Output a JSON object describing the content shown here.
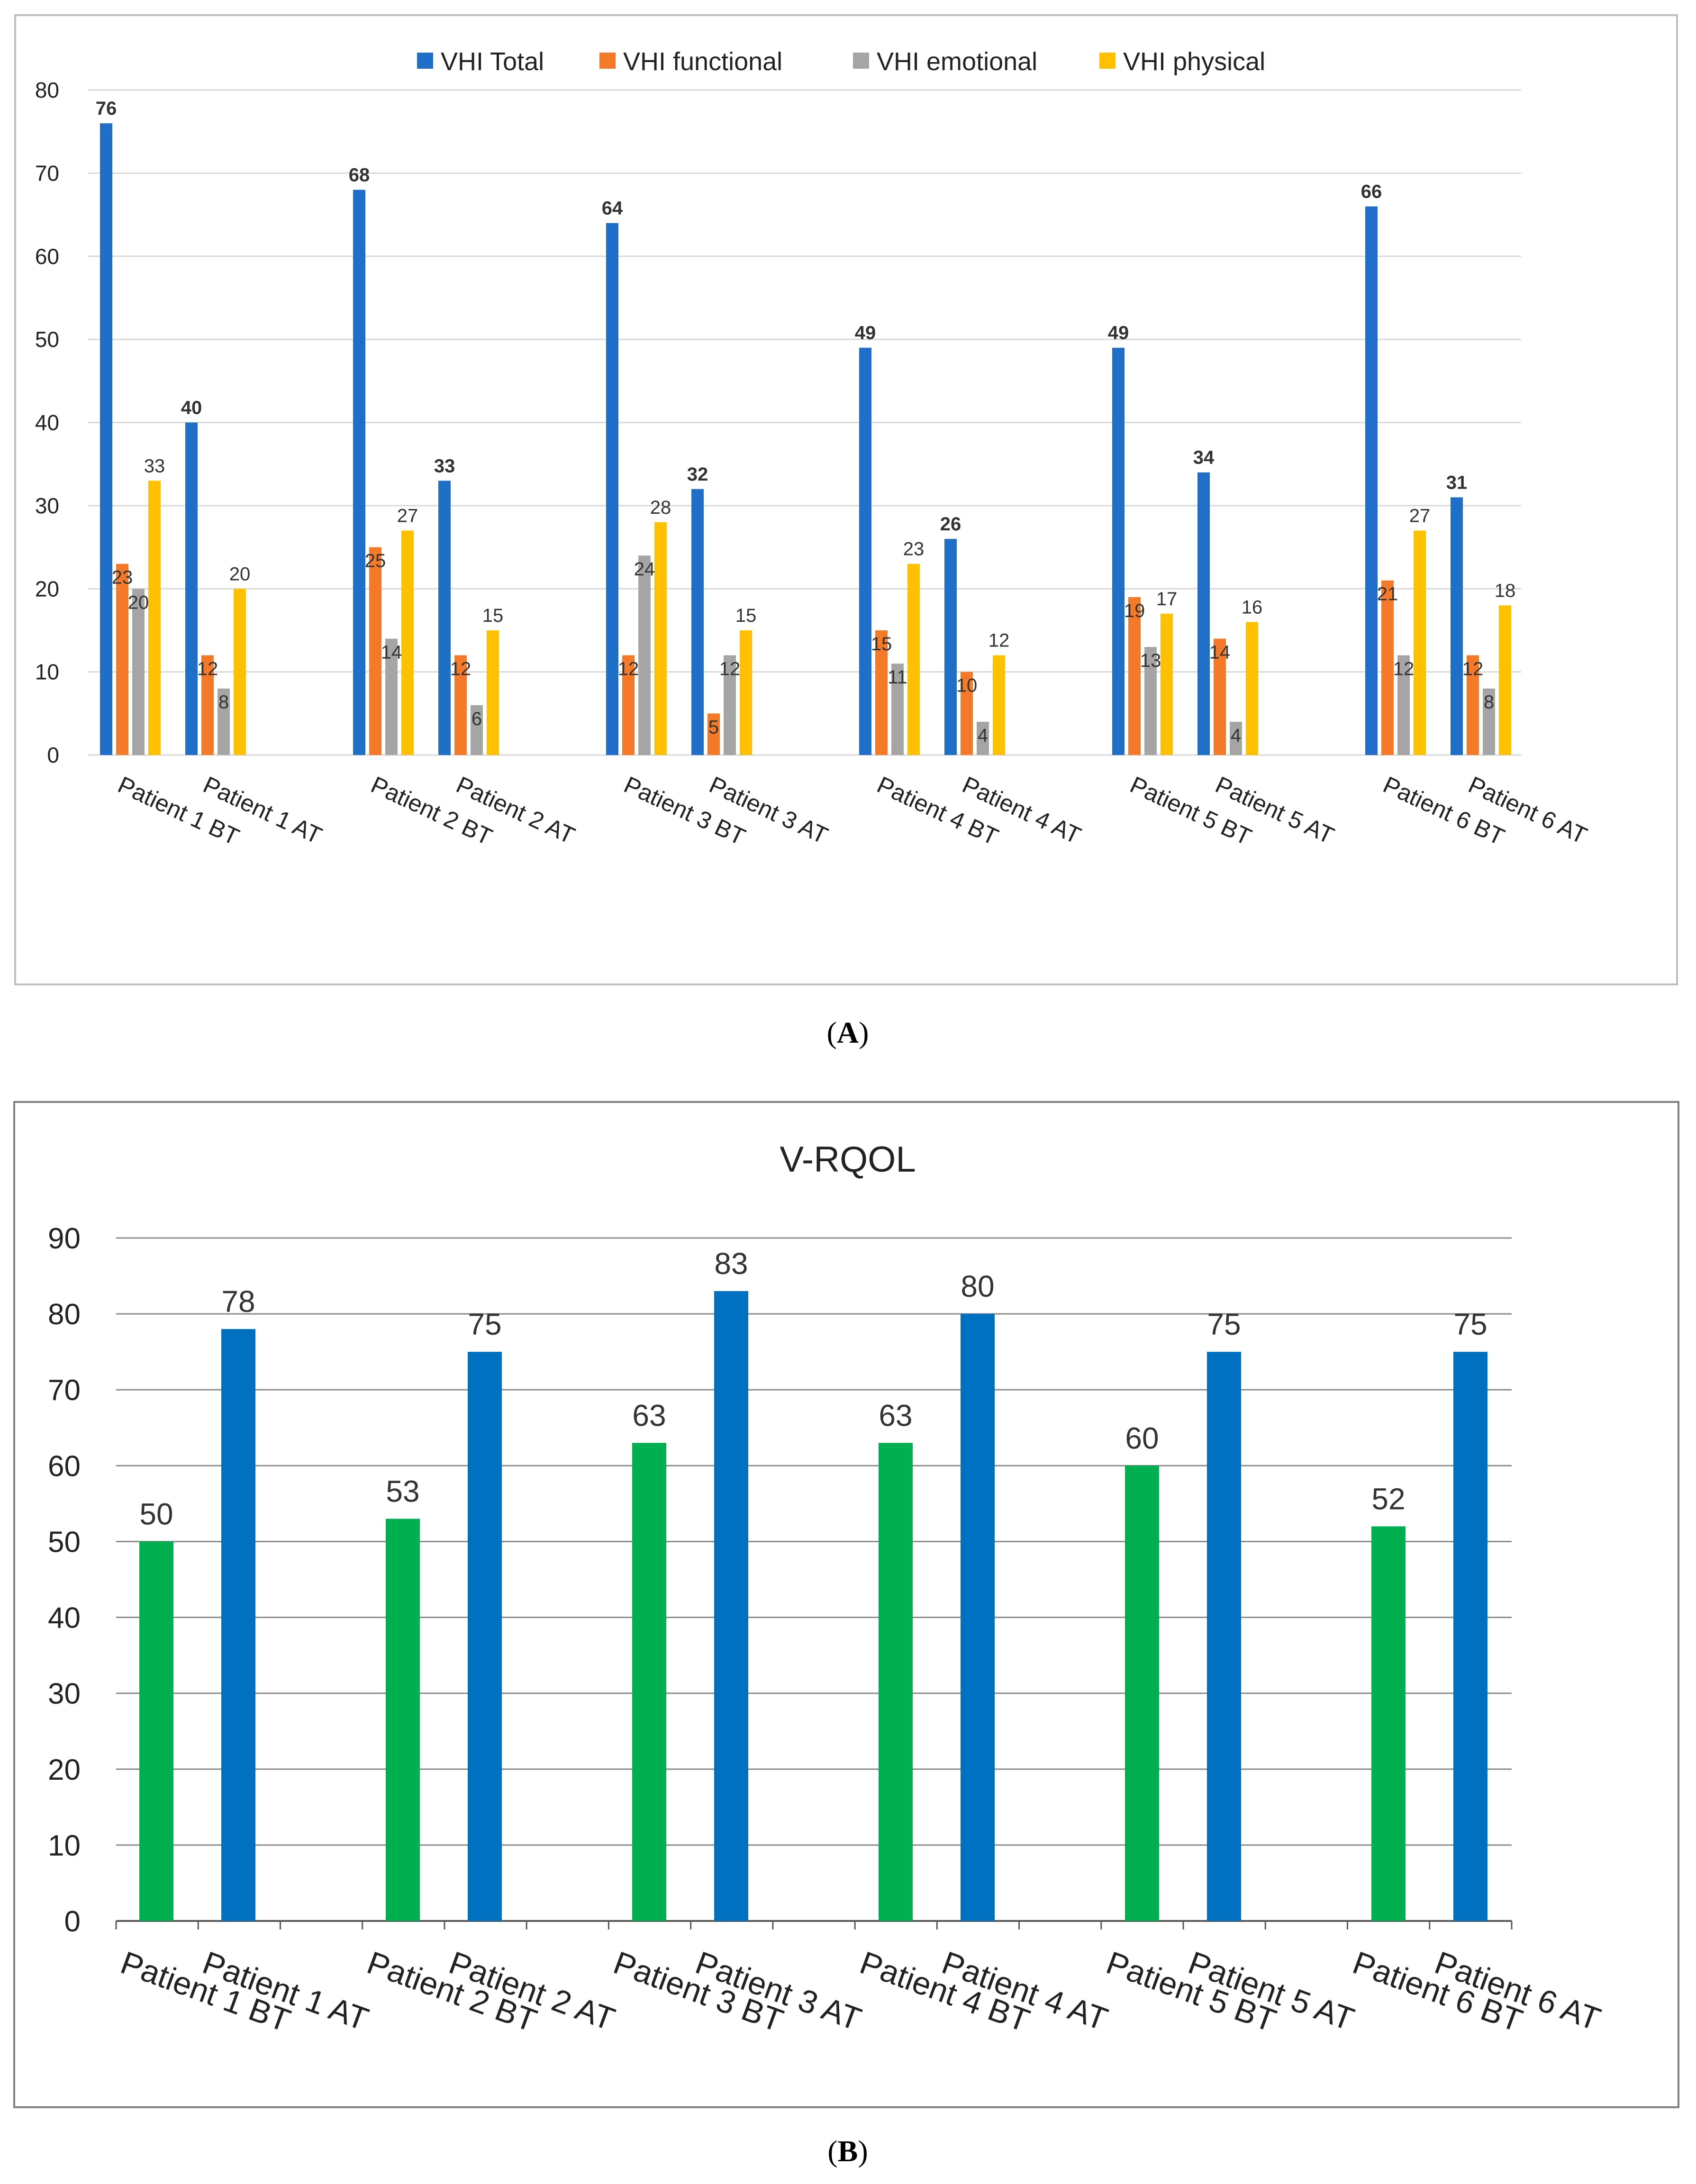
{
  "colors": {
    "vhi_total": "#1F6FC8",
    "vhi_functional": "#F47A2A",
    "vhi_emotional": "#A5A5A5",
    "vhi_physical": "#FFC000",
    "vrqol_bt": "#00B050",
    "vrqol_at": "#0070C0",
    "grid": "#D9D9D9",
    "frame": "#BFBFBF"
  },
  "captions": {
    "a": "A",
    "b": "B"
  },
  "chart_data": [
    {
      "id": "A",
      "type": "bar",
      "title": "",
      "xlabel": "",
      "ylabel": "",
      "ylim": [
        0,
        80
      ],
      "yticks": [
        0,
        10,
        20,
        30,
        40,
        50,
        60,
        70,
        80
      ],
      "grid": true,
      "legend_position": "top",
      "categories": [
        "Patient 1 BT",
        "Patient 1 AT",
        "Patient 2 BT",
        "Patient 2 AT",
        "Patient 3 BT",
        "Patient 3 AT",
        "Patient 4 BT",
        "Patient 4 AT",
        "Patient 5 BT",
        "Patient 5 AT",
        "Patient 6 BT",
        "Patient 6 AT"
      ],
      "series": [
        {
          "name": "VHI Total",
          "color_key": "vhi_total",
          "values": [
            76,
            40,
            68,
            33,
            64,
            32,
            49,
            26,
            49,
            34,
            66,
            31
          ]
        },
        {
          "name": "VHI functional",
          "color_key": "vhi_functional",
          "values": [
            23,
            12,
            25,
            12,
            12,
            5,
            15,
            10,
            19,
            14,
            21,
            12
          ]
        },
        {
          "name": "VHI emotional",
          "color_key": "vhi_emotional",
          "values": [
            20,
            8,
            14,
            6,
            24,
            12,
            11,
            4,
            13,
            4,
            12,
            8
          ]
        },
        {
          "name": "VHI physical",
          "color_key": "vhi_physical",
          "values": [
            33,
            20,
            27,
            15,
            28,
            15,
            23,
            12,
            17,
            16,
            27,
            18
          ]
        }
      ]
    },
    {
      "id": "B",
      "type": "bar",
      "title": "V-RQOL",
      "xlabel": "",
      "ylabel": "",
      "ylim": [
        0,
        90
      ],
      "yticks": [
        0,
        10,
        20,
        30,
        40,
        50,
        60,
        70,
        80,
        90
      ],
      "grid": true,
      "legend_position": "none",
      "categories": [
        "Patient 1 BT",
        "Patient 1 AT",
        "Patient 2 BT",
        "Patient 2 AT",
        "Patient 3 BT",
        "Patient 3 AT",
        "Patient 4 BT",
        "Patient 4 AT",
        "Patient 5 BT",
        "Patient 5 AT",
        "Patient 6 BT",
        "Patient 6 AT"
      ],
      "values": [
        50,
        78,
        53,
        75,
        63,
        83,
        63,
        80,
        60,
        75,
        52,
        75
      ]
    }
  ]
}
